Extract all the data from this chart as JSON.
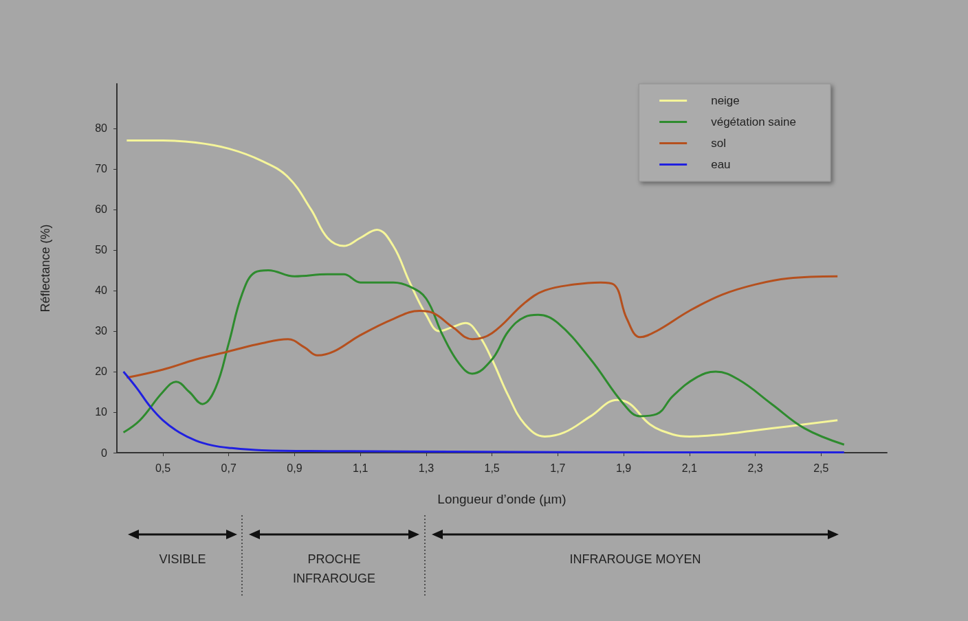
{
  "chart_data": {
    "type": "line",
    "xlabel": "Longueur d’onde (µm)",
    "ylabel": "Réflectance (%)",
    "xlim": [
      0.36,
      2.7
    ],
    "ylim": [
      0,
      91
    ],
    "xticks": [
      {
        "value": 0.5,
        "label": "0,5"
      },
      {
        "value": 0.7,
        "label": "0,7"
      },
      {
        "value": 0.9,
        "label": "0,9"
      },
      {
        "value": 1.1,
        "label": "1,1"
      },
      {
        "value": 1.3,
        "label": "1,3"
      },
      {
        "value": 1.5,
        "label": "1,5"
      },
      {
        "value": 1.7,
        "label": "1,7"
      },
      {
        "value": 1.9,
        "label": "1,9"
      },
      {
        "value": 2.1,
        "label": "2,1"
      },
      {
        "value": 2.3,
        "label": "2,3"
      },
      {
        "value": 2.5,
        "label": "2,5"
      }
    ],
    "yticks": [
      0,
      10,
      20,
      30,
      40,
      50,
      60,
      70,
      80
    ],
    "legend": "top right",
    "series": [
      {
        "name": "neige",
        "color": "#f5f59a",
        "x": [
          0.39,
          0.5,
          0.6,
          0.7,
          0.8,
          0.88,
          0.95,
          1.0,
          1.05,
          1.1,
          1.15,
          1.2,
          1.25,
          1.3,
          1.34,
          1.38,
          1.42,
          1.46,
          1.5,
          1.55,
          1.6,
          1.66,
          1.72,
          1.8,
          1.88,
          1.92,
          1.98,
          2.05,
          2.1,
          2.2,
          2.3,
          2.4,
          2.55
        ],
        "values": [
          77,
          77,
          76.5,
          75,
          72,
          68,
          60,
          53,
          51,
          53,
          55,
          51,
          42,
          34,
          30,
          31,
          32,
          29,
          23,
          14,
          7,
          4,
          5,
          9,
          13,
          12,
          7,
          4.5,
          4,
          4.5,
          5.5,
          6.5,
          8
        ]
      },
      {
        "name": "végétation saine",
        "color": "#2e8b2e",
        "x": [
          0.38,
          0.43,
          0.5,
          0.54,
          0.58,
          0.62,
          0.66,
          0.7,
          0.74,
          0.78,
          0.82,
          0.9,
          1.0,
          1.05,
          1.1,
          1.2,
          1.25,
          1.3,
          1.35,
          1.4,
          1.44,
          1.5,
          1.55,
          1.6,
          1.64,
          1.7,
          1.8,
          1.9,
          1.95,
          2.0,
          2.05,
          2.12,
          2.18,
          2.25,
          2.35,
          2.45,
          2.57
        ],
        "values": [
          5,
          8,
          15,
          17.5,
          15,
          12,
          16,
          27,
          39,
          44.5,
          45,
          43.5,
          44,
          44,
          42,
          42,
          41,
          38,
          29,
          22,
          19.5,
          23,
          30,
          33.5,
          34,
          32,
          23,
          12,
          9,
          9.5,
          14,
          18.5,
          20,
          18,
          12,
          6,
          2
        ]
      },
      {
        "name": "sol",
        "color": "#b5501e",
        "x": [
          0.39,
          0.5,
          0.6,
          0.7,
          0.8,
          0.88,
          0.93,
          0.97,
          1.02,
          1.1,
          1.2,
          1.28,
          1.32,
          1.38,
          1.44,
          1.5,
          1.6,
          1.66,
          1.75,
          1.83,
          1.87,
          1.91,
          1.95,
          2.0,
          2.1,
          2.2,
          2.3,
          2.4,
          2.55
        ],
        "values": [
          18.5,
          20.5,
          23,
          25,
          27,
          28,
          26,
          24,
          25,
          29,
          33,
          35,
          34.5,
          31,
          28,
          29.5,
          37,
          40,
          41.5,
          42,
          41.5,
          33,
          28.5,
          30,
          35,
          39,
          41.5,
          43,
          43.5
        ]
      },
      {
        "name": "eau",
        "color": "#2020e0",
        "x": [
          0.38,
          0.42,
          0.46,
          0.5,
          0.55,
          0.6,
          0.65,
          0.7,
          0.8,
          1.0,
          1.5,
          2.0,
          2.57
        ],
        "values": [
          20,
          16,
          11.5,
          8,
          5,
          3,
          1.8,
          1.2,
          0.6,
          0.4,
          0.2,
          0.1,
          0.1
        ]
      }
    ],
    "annotations": [
      "VISIBLE",
      "PROCHE INFRAROUGE",
      "INFRAROUGE MOYEN"
    ]
  }
}
